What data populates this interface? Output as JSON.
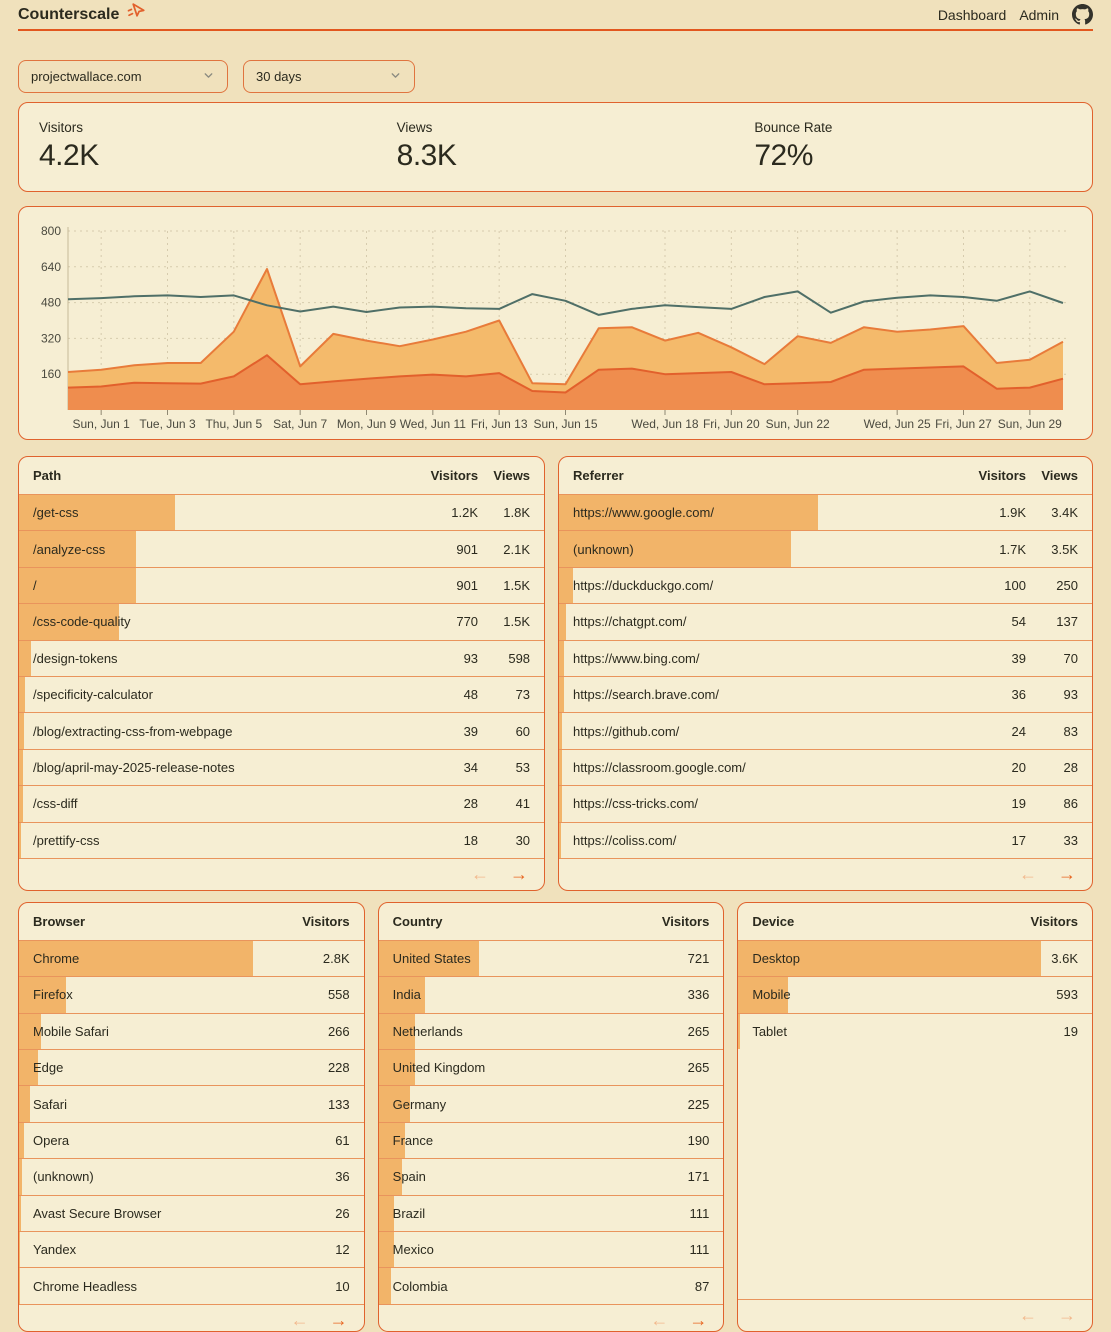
{
  "header": {
    "brand": "Counterscale",
    "nav": [
      {
        "label": "Dashboard"
      },
      {
        "label": "Admin"
      }
    ]
  },
  "filters": {
    "site": "projectwallace.com",
    "range": "30 days"
  },
  "stats": [
    {
      "label": "Visitors",
      "value": "4.2K"
    },
    {
      "label": "Views",
      "value": "8.3K"
    },
    {
      "label": "Bounce Rate",
      "value": "72%"
    }
  ],
  "chart_data": {
    "type": "area",
    "n_points": 31,
    "ylim": [
      0,
      800
    ],
    "y_ticks": [
      160,
      320,
      480,
      640,
      800
    ],
    "grid": true,
    "x_tick_labels": [
      {
        "i": 1,
        "label": "Sun, Jun 1"
      },
      {
        "i": 3,
        "label": "Tue, Jun 3"
      },
      {
        "i": 5,
        "label": "Thu, Jun 5"
      },
      {
        "i": 7,
        "label": "Sat, Jun 7"
      },
      {
        "i": 9,
        "label": "Mon, Jun 9"
      },
      {
        "i": 11,
        "label": "Wed, Jun 11"
      },
      {
        "i": 13,
        "label": "Fri, Jun 13"
      },
      {
        "i": 15,
        "label": "Sun, Jun 15"
      },
      {
        "i": 18,
        "label": "Wed, Jun 18"
      },
      {
        "i": 20,
        "label": "Fri, Jun 20"
      },
      {
        "i": 22,
        "label": "Sun, Jun 22"
      },
      {
        "i": 25,
        "label": "Wed, Jun 25"
      },
      {
        "i": 27,
        "label": "Fri, Jun 27"
      },
      {
        "i": 29,
        "label": "Sun, Jun 29"
      }
    ],
    "series": [
      {
        "name": "views",
        "style": "area-light",
        "values": [
          170,
          180,
          200,
          210,
          210,
          350,
          630,
          195,
          340,
          310,
          285,
          315,
          350,
          400,
          120,
          115,
          365,
          370,
          310,
          345,
          280,
          205,
          330,
          300,
          370,
          350,
          360,
          375,
          210,
          225,
          305
        ]
      },
      {
        "name": "visitors",
        "style": "area-dark",
        "values": [
          100,
          105,
          122,
          120,
          118,
          150,
          245,
          115,
          128,
          140,
          150,
          158,
          150,
          165,
          85,
          78,
          180,
          185,
          160,
          165,
          170,
          115,
          120,
          125,
          180,
          185,
          190,
          195,
          95,
          100,
          140
        ]
      },
      {
        "name": "line",
        "style": "line",
        "values": [
          495,
          500,
          508,
          512,
          505,
          512,
          468,
          440,
          462,
          438,
          458,
          462,
          455,
          452,
          518,
          488,
          425,
          452,
          468,
          460,
          452,
          505,
          530,
          435,
          485,
          502,
          512,
          505,
          488,
          530,
          478
        ]
      }
    ]
  },
  "tables": {
    "path": {
      "title": "Path",
      "columns": [
        "Visitors",
        "Views"
      ],
      "rows": [
        {
          "label": "/get-css",
          "visitors": 1200,
          "visitors_display": "1.2K",
          "views_display": "1.8K"
        },
        {
          "label": "/analyze-css",
          "visitors": 901,
          "visitors_display": "901",
          "views_display": "2.1K"
        },
        {
          "label": "/",
          "visitors": 901,
          "visitors_display": "901",
          "views_display": "1.5K"
        },
        {
          "label": "/css-code-quality",
          "visitors": 770,
          "visitors_display": "770",
          "views_display": "1.5K"
        },
        {
          "label": "/design-tokens",
          "visitors": 93,
          "visitors_display": "93",
          "views_display": "598"
        },
        {
          "label": "/specificity-calculator",
          "visitors": 48,
          "visitors_display": "48",
          "views_display": "73"
        },
        {
          "label": "/blog/extracting-css-from-webpage",
          "visitors": 39,
          "visitors_display": "39",
          "views_display": "60"
        },
        {
          "label": "/blog/april-may-2025-release-notes",
          "visitors": 34,
          "visitors_display": "34",
          "views_display": "53"
        },
        {
          "label": "/css-diff",
          "visitors": 28,
          "visitors_display": "28",
          "views_display": "41"
        },
        {
          "label": "/prettify-css",
          "visitors": 18,
          "visitors_display": "18",
          "views_display": "30"
        }
      ],
      "pagination": {
        "prev_enabled": false,
        "next_enabled": true
      }
    },
    "referrer": {
      "title": "Referrer",
      "columns": [
        "Visitors",
        "Views"
      ],
      "rows": [
        {
          "label": "https://www.google.com/",
          "visitors": 1900,
          "visitors_display": "1.9K",
          "views_display": "3.4K"
        },
        {
          "label": "(unknown)",
          "visitors": 1700,
          "visitors_display": "1.7K",
          "views_display": "3.5K"
        },
        {
          "label": "https://duckduckgo.com/",
          "visitors": 100,
          "visitors_display": "100",
          "views_display": "250"
        },
        {
          "label": "https://chatgpt.com/",
          "visitors": 54,
          "visitors_display": "54",
          "views_display": "137"
        },
        {
          "label": "https://www.bing.com/",
          "visitors": 39,
          "visitors_display": "39",
          "views_display": "70"
        },
        {
          "label": "https://search.brave.com/",
          "visitors": 36,
          "visitors_display": "36",
          "views_display": "93"
        },
        {
          "label": "https://github.com/",
          "visitors": 24,
          "visitors_display": "24",
          "views_display": "83"
        },
        {
          "label": "https://classroom.google.com/",
          "visitors": 20,
          "visitors_display": "20",
          "views_display": "28"
        },
        {
          "label": "https://css-tricks.com/",
          "visitors": 19,
          "visitors_display": "19",
          "views_display": "86"
        },
        {
          "label": "https://coliss.com/",
          "visitors": 17,
          "visitors_display": "17",
          "views_display": "33"
        }
      ],
      "pagination": {
        "prev_enabled": false,
        "next_enabled": true
      }
    },
    "browser": {
      "title": "Browser",
      "columns": [
        "Visitors"
      ],
      "rows": [
        {
          "label": "Chrome",
          "visitors": 2800,
          "visitors_display": "2.8K"
        },
        {
          "label": "Firefox",
          "visitors": 558,
          "visitors_display": "558"
        },
        {
          "label": "Mobile Safari",
          "visitors": 266,
          "visitors_display": "266"
        },
        {
          "label": "Edge",
          "visitors": 228,
          "visitors_display": "228"
        },
        {
          "label": "Safari",
          "visitors": 133,
          "visitors_display": "133"
        },
        {
          "label": "Opera",
          "visitors": 61,
          "visitors_display": "61"
        },
        {
          "label": "(unknown)",
          "visitors": 36,
          "visitors_display": "36"
        },
        {
          "label": "Avast Secure Browser",
          "visitors": 26,
          "visitors_display": "26"
        },
        {
          "label": "Yandex",
          "visitors": 12,
          "visitors_display": "12"
        },
        {
          "label": "Chrome Headless",
          "visitors": 10,
          "visitors_display": "10"
        }
      ],
      "pagination": {
        "prev_enabled": false,
        "next_enabled": true
      }
    },
    "country": {
      "title": "Country",
      "columns": [
        "Visitors"
      ],
      "rows": [
        {
          "label": "United States",
          "visitors": 721,
          "visitors_display": "721"
        },
        {
          "label": "India",
          "visitors": 336,
          "visitors_display": "336"
        },
        {
          "label": "Netherlands",
          "visitors": 265,
          "visitors_display": "265"
        },
        {
          "label": "United Kingdom",
          "visitors": 265,
          "visitors_display": "265"
        },
        {
          "label": "Germany",
          "visitors": 225,
          "visitors_display": "225"
        },
        {
          "label": "France",
          "visitors": 190,
          "visitors_display": "190"
        },
        {
          "label": "Spain",
          "visitors": 171,
          "visitors_display": "171"
        },
        {
          "label": "Brazil",
          "visitors": 111,
          "visitors_display": "111"
        },
        {
          "label": "Mexico",
          "visitors": 111,
          "visitors_display": "111"
        },
        {
          "label": "Colombia",
          "visitors": 87,
          "visitors_display": "87"
        }
      ],
      "pagination": {
        "prev_enabled": false,
        "next_enabled": true
      }
    },
    "device": {
      "title": "Device",
      "columns": [
        "Visitors"
      ],
      "rows": [
        {
          "label": "Desktop",
          "visitors": 3600,
          "visitors_display": "3.6K"
        },
        {
          "label": "Mobile",
          "visitors": 593,
          "visitors_display": "593"
        },
        {
          "label": "Tablet",
          "visitors": 19,
          "visitors_display": "19"
        }
      ],
      "pagination": {
        "prev_enabled": false,
        "next_enabled": false
      }
    }
  },
  "icons": {
    "prev_arrow": "←",
    "next_arrow": "→"
  },
  "colors": {
    "page_bg": "#f0e1bc",
    "card_bg": "#f6eed3",
    "accent": "#e0622d",
    "accent_bright": "#e8641f",
    "bar": "#f2b469",
    "separator": "#e9945c",
    "area_light": "#f4ba6b",
    "area_light_stroke": "#e87b3a",
    "area_dark": "#ef8d4e",
    "area_dark_stroke": "#e2602c",
    "trend_line": "#4f6f67",
    "grid_line": "#d6cbad",
    "axis_text": "#4b4a3f",
    "text": "#2b2a1e"
  }
}
